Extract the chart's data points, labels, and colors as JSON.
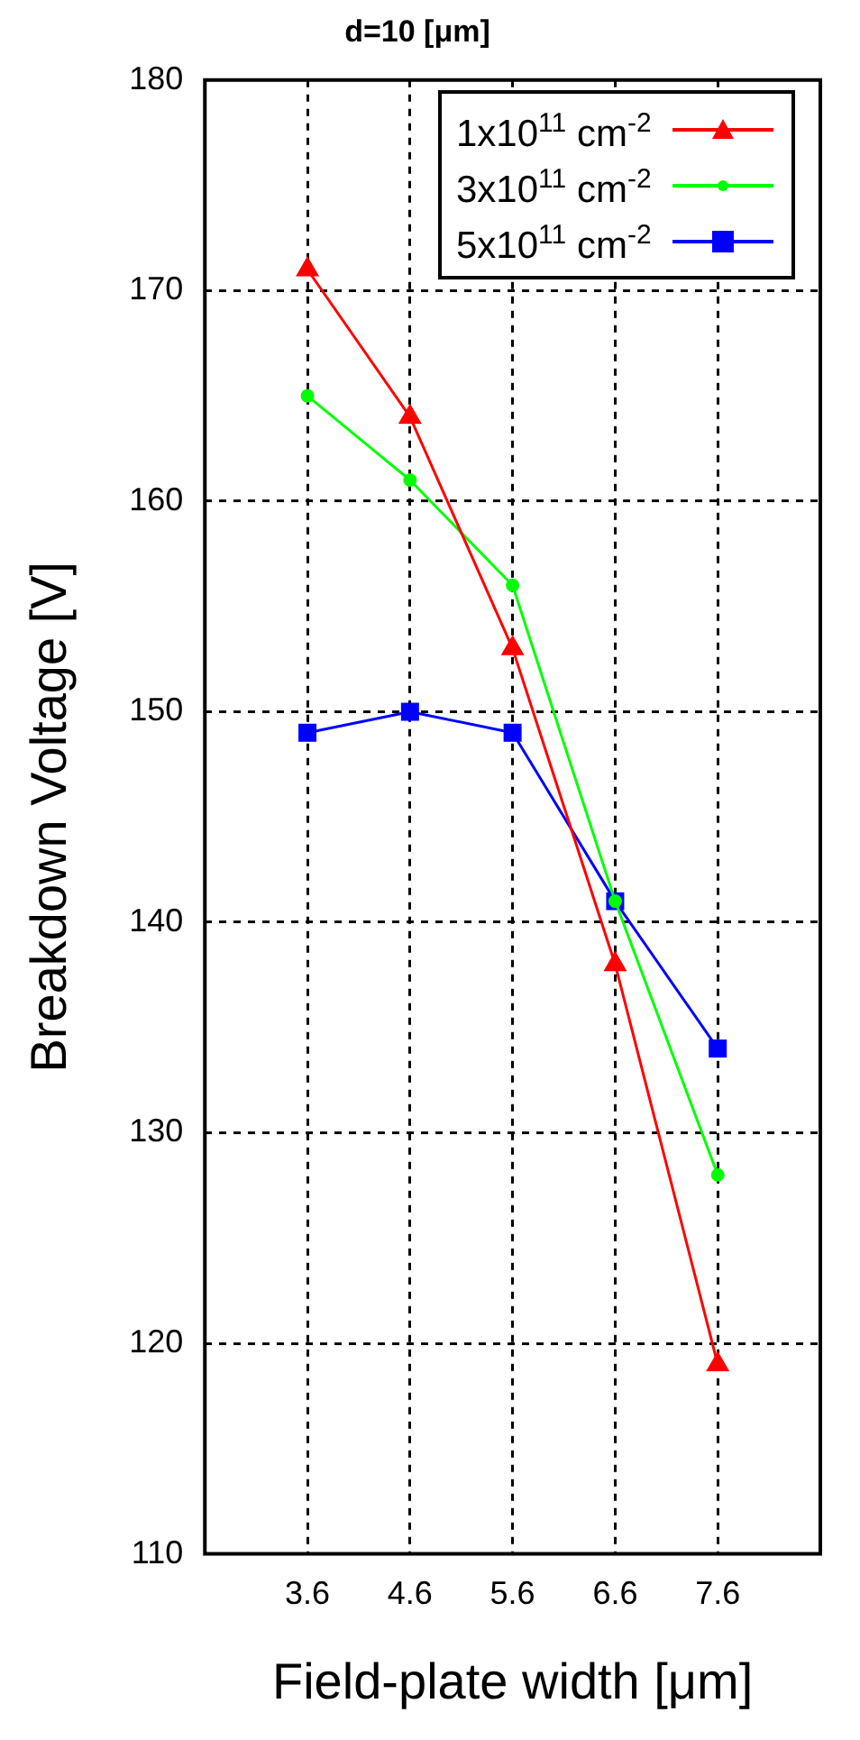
{
  "chart_data": {
    "type": "line",
    "title": "d=10 [μm]",
    "xlabel": "Field-plate width [μm]",
    "ylabel": "Breakdown Voltage [V]",
    "x": [
      3.6,
      4.6,
      5.6,
      6.6,
      7.6
    ],
    "series": [
      {
        "name": "1x10$^{11}$ cm$^{-2}$",
        "color": "#ff0000",
        "marker": "triangle",
        "values": [
          171,
          164,
          153,
          138,
          119
        ]
      },
      {
        "name": "3x10$^{11}$ cm$^{-2}$",
        "color": "#00ff00",
        "marker": "circle",
        "values": [
          165,
          161,
          156,
          141,
          128
        ]
      },
      {
        "name": "5x10$^{11}$ cm$^{-2}$",
        "color": "#0000ff",
        "marker": "square",
        "values": [
          149,
          150,
          149,
          141,
          134
        ]
      }
    ],
    "xlim": [
      2.6,
      8.6
    ],
    "xticks": [
      3.6,
      4.6,
      5.6,
      6.6,
      7.6
    ],
    "ylim": [
      110,
      180
    ],
    "yticks": [
      110,
      120,
      130,
      140,
      150,
      160,
      170,
      180
    ],
    "grid": true,
    "legend": "top right",
    "line_style": "solid"
  }
}
